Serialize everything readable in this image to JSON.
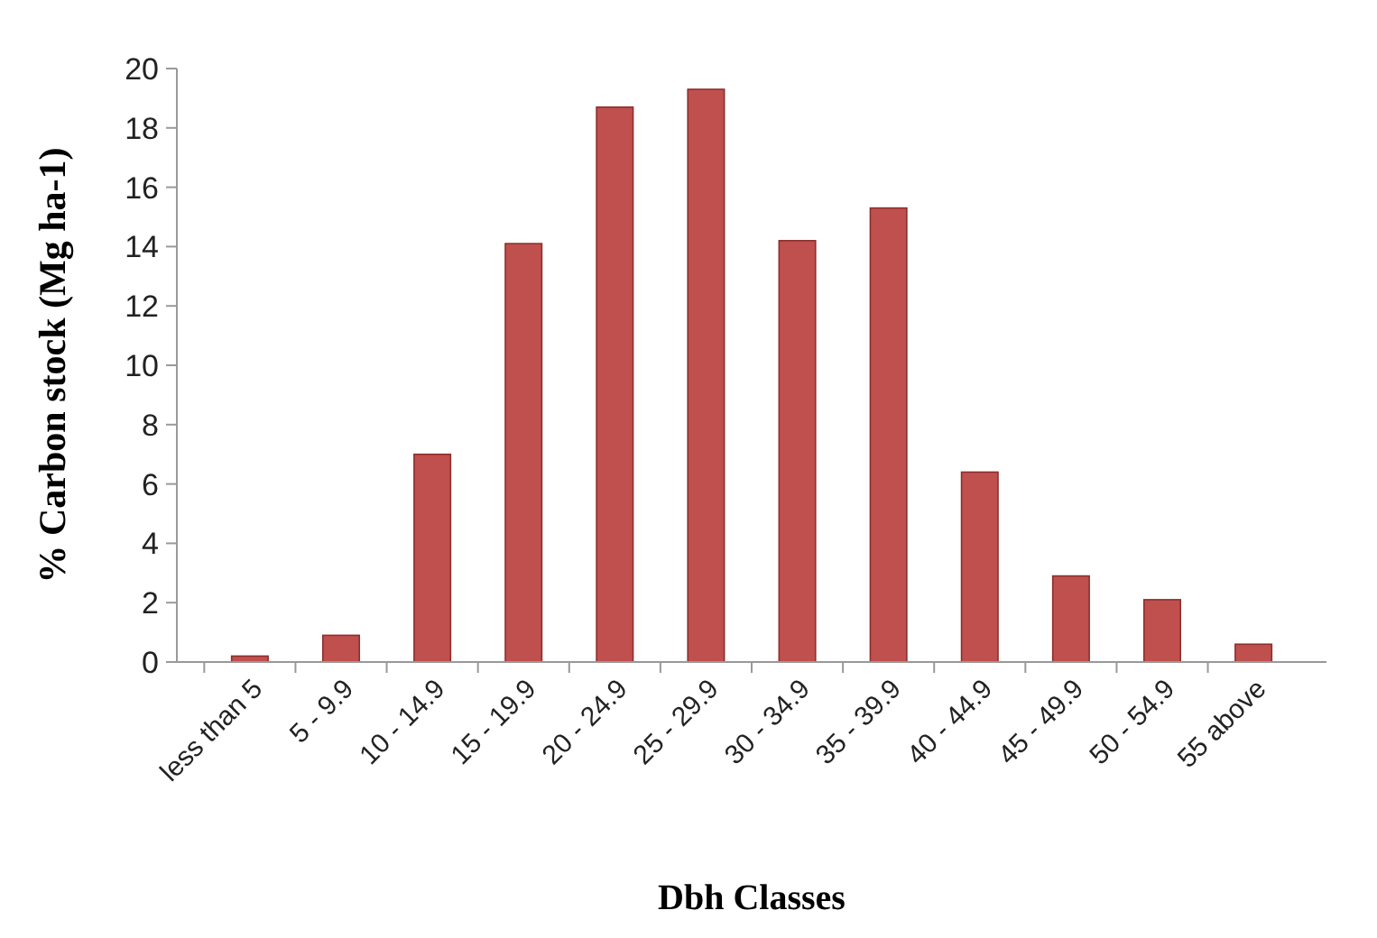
{
  "chart_data": {
    "type": "bar",
    "xlabel": "Dbh Classes",
    "ylabel": "% Carbon stock (Mg ha-1)",
    "categories": [
      "less than 5",
      "5 - 9.9",
      "10 - 14.9",
      "15 - 19.9",
      "20 - 24.9",
      "25 - 29.9",
      "30 - 34.9",
      "35 - 39.9",
      "40 - 44.9",
      "45 - 49.9",
      "50 - 54.9",
      "55 above"
    ],
    "values": [
      0.2,
      0.9,
      7.0,
      14.1,
      18.7,
      19.3,
      14.2,
      15.3,
      6.4,
      2.9,
      2.1,
      0.6
    ],
    "color": "#c0504d",
    "ylim": [
      0,
      20
    ],
    "yticks": [
      0,
      2,
      4,
      6,
      8,
      10,
      12,
      14,
      16,
      18,
      20
    ],
    "grid": false
  }
}
